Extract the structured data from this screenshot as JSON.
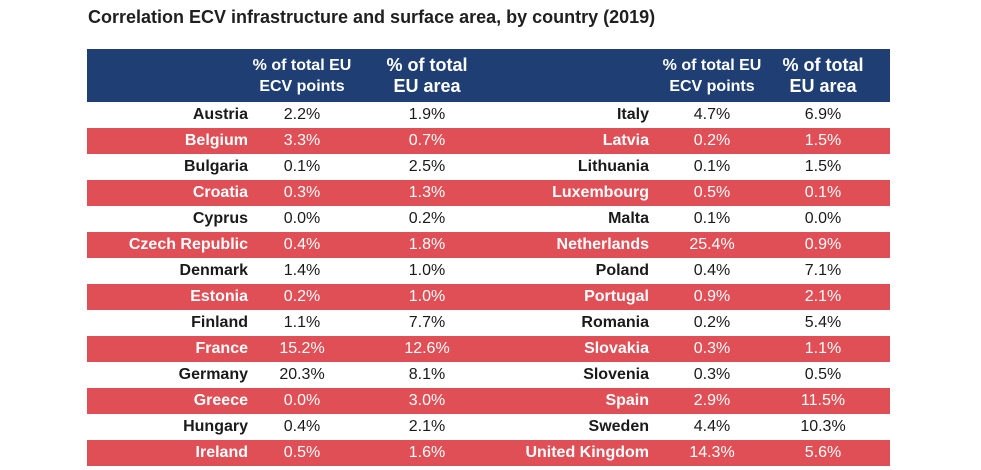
{
  "title": "Correlation ECV infrastructure and surface area, by country (2019)",
  "colors": {
    "header_bg": "#1f3f74",
    "alt_row_bg": "#e04f55"
  },
  "chart_data": {
    "type": "table",
    "title": "Correlation ECV infrastructure and surface area, by country (2019)",
    "headers": {
      "ecv": "% of total EU\nECV points",
      "area": "% of total\nEU area"
    },
    "left": [
      {
        "country": "Austria",
        "ecv": "2.2%",
        "area": "1.9%"
      },
      {
        "country": "Belgium",
        "ecv": "3.3%",
        "area": "0.7%"
      },
      {
        "country": "Bulgaria",
        "ecv": "0.1%",
        "area": "2.5%"
      },
      {
        "country": "Croatia",
        "ecv": "0.3%",
        "area": "1.3%"
      },
      {
        "country": "Cyprus",
        "ecv": "0.0%",
        "area": "0.2%"
      },
      {
        "country": "Czech Republic",
        "ecv": "0.4%",
        "area": "1.8%"
      },
      {
        "country": "Denmark",
        "ecv": "1.4%",
        "area": "1.0%"
      },
      {
        "country": "Estonia",
        "ecv": "0.2%",
        "area": "1.0%"
      },
      {
        "country": "Finland",
        "ecv": "1.1%",
        "area": "7.7%"
      },
      {
        "country": "France",
        "ecv": "15.2%",
        "area": "12.6%"
      },
      {
        "country": "Germany",
        "ecv": "20.3%",
        "area": "8.1%"
      },
      {
        "country": "Greece",
        "ecv": "0.0%",
        "area": "3.0%"
      },
      {
        "country": "Hungary",
        "ecv": "0.4%",
        "area": "2.1%"
      },
      {
        "country": "Ireland",
        "ecv": "0.5%",
        "area": "1.6%"
      }
    ],
    "right": [
      {
        "country": "Italy",
        "ecv": "4.7%",
        "area": "6.9%"
      },
      {
        "country": "Latvia",
        "ecv": "0.2%",
        "area": "1.5%"
      },
      {
        "country": "Lithuania",
        "ecv": "0.1%",
        "area": "1.5%"
      },
      {
        "country": "Luxembourg",
        "ecv": "0.5%",
        "area": "0.1%"
      },
      {
        "country": "Malta",
        "ecv": "0.1%",
        "area": "0.0%"
      },
      {
        "country": "Netherlands",
        "ecv": "25.4%",
        "area": "0.9%"
      },
      {
        "country": "Poland",
        "ecv": "0.4%",
        "area": "7.1%"
      },
      {
        "country": "Portugal",
        "ecv": "0.9%",
        "area": "2.1%"
      },
      {
        "country": "Romania",
        "ecv": "0.2%",
        "area": "5.4%"
      },
      {
        "country": "Slovakia",
        "ecv": "0.3%",
        "area": "1.1%"
      },
      {
        "country": "Slovenia",
        "ecv": "0.3%",
        "area": "0.5%"
      },
      {
        "country": "Spain",
        "ecv": "2.9%",
        "area": "11.5%"
      },
      {
        "country": "Sweden",
        "ecv": "4.4%",
        "area": "10.3%"
      },
      {
        "country": "United Kingdom",
        "ecv": "14.3%",
        "area": "5.6%"
      }
    ]
  }
}
